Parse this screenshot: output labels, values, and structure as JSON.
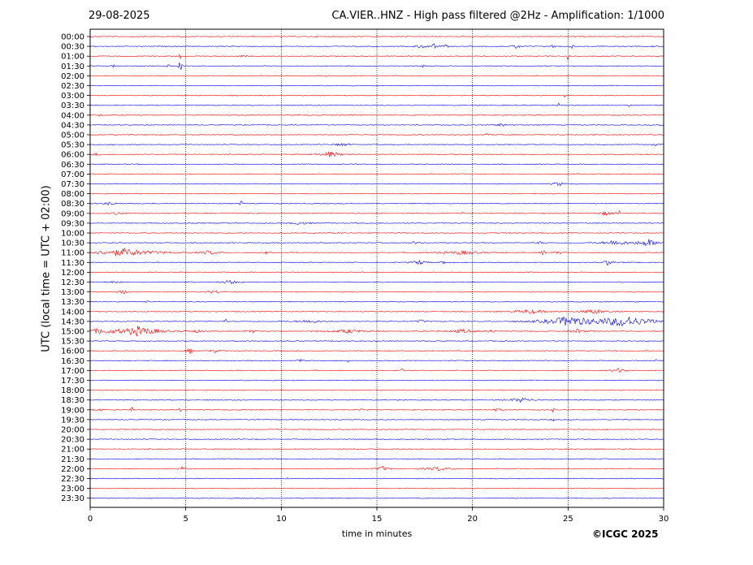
{
  "header": {
    "date": "29-08-2025",
    "title": "CA.VIER..HNZ - High pass filtered @2Hz - Amplification: 1/1000"
  },
  "footer": {
    "credit": "©ICGC 2025"
  },
  "chart_data": {
    "type": "line",
    "xlabel": "time in minutes",
    "ylabel": "UTC (local time = UTC + 02:00)",
    "xlim": [
      0,
      30
    ],
    "xticks": [
      0,
      5,
      10,
      15,
      20,
      25,
      30
    ],
    "xtick_labels": [
      "0",
      "5",
      "10",
      "15",
      "20",
      "25",
      "30"
    ],
    "vertical_grid_minutes": [
      5,
      10,
      15,
      20,
      25
    ],
    "row_labels": [
      "00:00",
      "00:30",
      "01:00",
      "01:30",
      "02:00",
      "02:30",
      "03:00",
      "03:30",
      "04:00",
      "04:30",
      "05:00",
      "05:30",
      "06:00",
      "06:30",
      "07:00",
      "07:30",
      "08:00",
      "08:30",
      "09:00",
      "09:30",
      "10:00",
      "10:30",
      "11:00",
      "11:30",
      "12:00",
      "12:30",
      "13:00",
      "13:30",
      "14:00",
      "14:30",
      "15:00",
      "15:30",
      "16:00",
      "16:30",
      "17:00",
      "17:30",
      "18:00",
      "18:30",
      "19:00",
      "19:30",
      "20:00",
      "20:30",
      "21:00",
      "21:30",
      "22:00",
      "22:30",
      "23:00",
      "23:30"
    ],
    "trace_colors": [
      "#ff0000",
      "#0000ff"
    ],
    "first_trace_color": "#ff0000",
    "events": [
      {
        "row": 1,
        "min": 17.3,
        "amp": 0.5,
        "dur": 0.6
      },
      {
        "row": 1,
        "min": 18.0,
        "amp": 0.6,
        "dur": 0.4
      },
      {
        "row": 1,
        "min": 18.6,
        "amp": 0.4,
        "dur": 0.3
      },
      {
        "row": 1,
        "min": 22.3,
        "amp": 0.5,
        "dur": 0.5
      },
      {
        "row": 1,
        "min": 24.2,
        "amp": 0.3,
        "dur": 0.4
      },
      {
        "row": 1,
        "min": 25.2,
        "amp": 0.35,
        "dur": 0.3
      },
      {
        "row": 1,
        "min": 29.5,
        "amp": 0.3,
        "dur": 0.2
      },
      {
        "row": 2,
        "min": 4.7,
        "amp": 0.9,
        "dur": 0.1
      },
      {
        "row": 2,
        "min": 8.0,
        "amp": 0.3,
        "dur": 0.4
      },
      {
        "row": 2,
        "min": 25.0,
        "amp": 1.5,
        "dur": 0.1
      },
      {
        "row": 3,
        "min": 4.1,
        "amp": 0.7,
        "dur": 0.15
      },
      {
        "row": 3,
        "min": 4.7,
        "amp": 2.2,
        "dur": 0.15
      },
      {
        "row": 3,
        "min": 1.2,
        "amp": 0.3,
        "dur": 0.2
      },
      {
        "row": 3,
        "min": 17.4,
        "amp": 0.4,
        "dur": 0.15
      },
      {
        "row": 4,
        "min": 12.3,
        "amp": 0.4,
        "dur": 0.1
      },
      {
        "row": 6,
        "min": 24.8,
        "amp": 0.6,
        "dur": 0.1
      },
      {
        "row": 7,
        "min": 24.5,
        "amp": 0.6,
        "dur": 0.1
      },
      {
        "row": 7,
        "min": 28.2,
        "amp": 0.4,
        "dur": 0.2
      },
      {
        "row": 8,
        "min": 0.5,
        "amp": 0.4,
        "dur": 0.15
      },
      {
        "row": 9,
        "min": 21.5,
        "amp": 0.3,
        "dur": 0.8
      },
      {
        "row": 9,
        "min": 29.8,
        "amp": 0.4,
        "dur": 0.2
      },
      {
        "row": 10,
        "min": 29.3,
        "amp": 0.5,
        "dur": 0.1
      },
      {
        "row": 10,
        "min": 20.8,
        "amp": 0.3,
        "dur": 0.4
      },
      {
        "row": 11,
        "min": 13.2,
        "amp": 0.3,
        "dur": 0.8
      },
      {
        "row": 11,
        "min": 29.6,
        "amp": 0.3,
        "dur": 0.4
      },
      {
        "row": 12,
        "min": 12.6,
        "amp": 0.6,
        "dur": 1.2
      },
      {
        "row": 12,
        "min": 0.3,
        "amp": 0.3,
        "dur": 0.4
      },
      {
        "row": 15,
        "min": 24.5,
        "amp": 0.5,
        "dur": 0.6
      },
      {
        "row": 17,
        "min": 1.0,
        "amp": 0.3,
        "dur": 0.8
      },
      {
        "row": 17,
        "min": 7.9,
        "amp": 1.2,
        "dur": 0.1
      },
      {
        "row": 18,
        "min": 1.5,
        "amp": 0.4,
        "dur": 0.7
      },
      {
        "row": 18,
        "min": 19.5,
        "amp": 0.6,
        "dur": 0.1
      },
      {
        "row": 18,
        "min": 27.0,
        "amp": 0.4,
        "dur": 1.0
      },
      {
        "row": 18,
        "min": 27.7,
        "amp": 0.6,
        "dur": 0.1
      },
      {
        "row": 19,
        "min": 11.0,
        "amp": 0.3,
        "dur": 1.0
      },
      {
        "row": 21,
        "min": 17.0,
        "amp": 0.4,
        "dur": 0.4
      },
      {
        "row": 21,
        "min": 23.5,
        "amp": 0.35,
        "dur": 0.3
      },
      {
        "row": 21,
        "min": 27.5,
        "amp": 0.6,
        "dur": 1.5
      },
      {
        "row": 21,
        "min": 29.2,
        "amp": 0.8,
        "dur": 1.2
      },
      {
        "row": 22,
        "min": 1.8,
        "amp": 0.8,
        "dur": 3.5
      },
      {
        "row": 22,
        "min": 6.2,
        "amp": 0.4,
        "dur": 1.2
      },
      {
        "row": 22,
        "min": 9.2,
        "amp": 0.3,
        "dur": 0.3
      },
      {
        "row": 22,
        "min": 19.5,
        "amp": 0.4,
        "dur": 2.5
      },
      {
        "row": 22,
        "min": 23.7,
        "amp": 0.6,
        "dur": 0.3
      },
      {
        "row": 22,
        "min": 24.5,
        "amp": 0.3,
        "dur": 0.6
      },
      {
        "row": 23,
        "min": 17.2,
        "amp": 0.5,
        "dur": 0.8
      },
      {
        "row": 23,
        "min": 27.1,
        "amp": 0.8,
        "dur": 0.4
      },
      {
        "row": 23,
        "min": 18.5,
        "amp": 0.3,
        "dur": 0.3
      },
      {
        "row": 24,
        "min": 18.5,
        "amp": 0.3,
        "dur": 0.1
      },
      {
        "row": 25,
        "min": 1.2,
        "amp": 0.4,
        "dur": 0.5
      },
      {
        "row": 25,
        "min": 7.3,
        "amp": 0.5,
        "dur": 0.8
      },
      {
        "row": 26,
        "min": 1.7,
        "amp": 0.5,
        "dur": 0.5
      },
      {
        "row": 26,
        "min": 6.5,
        "amp": 0.3,
        "dur": 1.0
      },
      {
        "row": 27,
        "min": 3.0,
        "amp": 0.3,
        "dur": 0.2
      },
      {
        "row": 28,
        "min": 23.0,
        "amp": 0.4,
        "dur": 2.0
      },
      {
        "row": 28,
        "min": 26.3,
        "amp": 0.5,
        "dur": 1.5
      },
      {
        "row": 29,
        "min": 7.1,
        "amp": 0.5,
        "dur": 0.2
      },
      {
        "row": 29,
        "min": 11.5,
        "amp": 0.4,
        "dur": 1.3
      },
      {
        "row": 29,
        "min": 17.3,
        "amp": 0.4,
        "dur": 0.4
      },
      {
        "row": 29,
        "min": 25.0,
        "amp": 1.0,
        "dur": 3.0
      },
      {
        "row": 29,
        "min": 28.0,
        "amp": 1.1,
        "dur": 3.5
      },
      {
        "row": 30,
        "min": 0.5,
        "amp": 0.5,
        "dur": 1.5
      },
      {
        "row": 30,
        "min": 2.5,
        "amp": 1.0,
        "dur": 2.5
      },
      {
        "row": 30,
        "min": 5.5,
        "amp": 0.3,
        "dur": 1.0
      },
      {
        "row": 30,
        "min": 8.5,
        "amp": 0.35,
        "dur": 0.5
      },
      {
        "row": 30,
        "min": 13.5,
        "amp": 0.4,
        "dur": 2.0
      },
      {
        "row": 30,
        "min": 19.5,
        "amp": 0.4,
        "dur": 1.5
      },
      {
        "row": 30,
        "min": 21.0,
        "amp": 0.6,
        "dur": 0.3
      },
      {
        "row": 30,
        "min": 25.5,
        "amp": 0.4,
        "dur": 1.0
      },
      {
        "row": 32,
        "min": 5.2,
        "amp": 0.8,
        "dur": 0.3
      },
      {
        "row": 32,
        "min": 6.5,
        "amp": 0.3,
        "dur": 0.6
      },
      {
        "row": 33,
        "min": 11.0,
        "amp": 0.4,
        "dur": 0.4
      },
      {
        "row": 33,
        "min": 13.5,
        "amp": 0.4,
        "dur": 0.1
      },
      {
        "row": 33,
        "min": 29.6,
        "amp": 0.3,
        "dur": 0.2
      },
      {
        "row": 34,
        "min": 16.3,
        "amp": 0.8,
        "dur": 0.1
      },
      {
        "row": 34,
        "min": 27.7,
        "amp": 0.5,
        "dur": 0.8
      },
      {
        "row": 36,
        "min": 27.8,
        "amp": 0.3,
        "dur": 0.3
      },
      {
        "row": 37,
        "min": 22.6,
        "amp": 0.5,
        "dur": 1.2
      },
      {
        "row": 38,
        "min": 0.5,
        "amp": 0.3,
        "dur": 0.6
      },
      {
        "row": 38,
        "min": 2.2,
        "amp": 0.6,
        "dur": 0.2
      },
      {
        "row": 38,
        "min": 4.7,
        "amp": 0.6,
        "dur": 0.1
      },
      {
        "row": 38,
        "min": 14.2,
        "amp": 0.4,
        "dur": 0.1
      },
      {
        "row": 38,
        "min": 21.3,
        "amp": 0.3,
        "dur": 0.5
      },
      {
        "row": 38,
        "min": 24.2,
        "amp": 0.5,
        "dur": 0.2
      },
      {
        "row": 39,
        "min": 24.2,
        "amp": 0.4,
        "dur": 0.2
      },
      {
        "row": 39,
        "min": 8.8,
        "amp": 0.3,
        "dur": 0.1
      },
      {
        "row": 44,
        "min": 4.8,
        "amp": 0.4,
        "dur": 0.5
      },
      {
        "row": 44,
        "min": 15.3,
        "amp": 0.5,
        "dur": 0.6
      },
      {
        "row": 44,
        "min": 18.2,
        "amp": 0.4,
        "dur": 1.5
      },
      {
        "row": 45,
        "min": 10.3,
        "amp": 0.3,
        "dur": 0.1
      }
    ]
  }
}
